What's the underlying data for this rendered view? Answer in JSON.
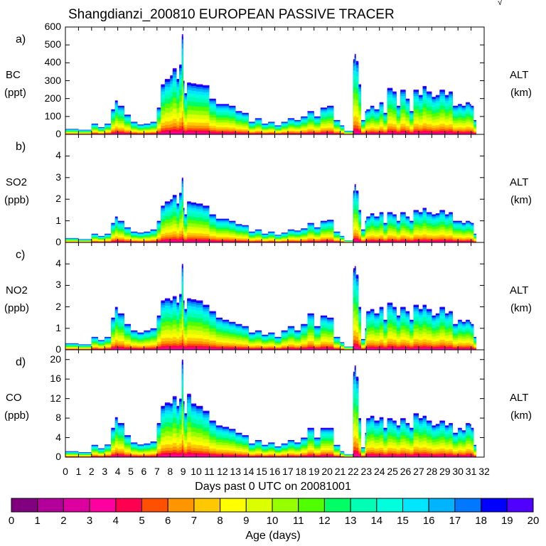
{
  "title": "Shangdianzi_200810 EUROPEAN PASSIVE TRACER",
  "corner_mark": "√",
  "x_axis": {
    "label": "Days past 0 UTC on 20081001",
    "ticks": [
      "0",
      "1",
      "2",
      "3",
      "4",
      "5",
      "6",
      "7",
      "8",
      "9",
      "10",
      "11",
      "12",
      "13",
      "14",
      "15",
      "16",
      "17",
      "18",
      "19",
      "20",
      "21",
      "22",
      "23",
      "24",
      "25",
      "26",
      "27",
      "28",
      "29",
      "30",
      "31",
      "32"
    ]
  },
  "colorbar": {
    "label": "Age (days)",
    "ticks": [
      "0",
      "1",
      "2",
      "3",
      "4",
      "5",
      "6",
      "7",
      "8",
      "9",
      "10",
      "11",
      "12",
      "13",
      "14",
      "15",
      "16",
      "17",
      "18",
      "19",
      "20"
    ],
    "colors": [
      "#800080",
      "#b4009b",
      "#dc00a0",
      "#ff00a0",
      "#ff0050",
      "#ff5000",
      "#ff9600",
      "#ffc800",
      "#ffff00",
      "#dcff00",
      "#96ff00",
      "#50ff00",
      "#00ff64",
      "#00ffb4",
      "#00ffdc",
      "#00e6ff",
      "#00b4ff",
      "#0078ff",
      "#0000ff",
      "#5000ff"
    ]
  },
  "chart_data": [
    {
      "id": "a",
      "panel_label": "a)",
      "variable": "BC",
      "unit": "(ppt)",
      "right_label": "ALT",
      "right_unit": "(km)",
      "type": "area",
      "ylim": [
        0,
        600
      ],
      "yticks": [
        "0",
        "100",
        "200",
        "300",
        "400",
        "500",
        "600"
      ],
      "xlim": [
        0,
        32
      ],
      "total_series": {
        "x": [
          0,
          1,
          2,
          2.5,
          3,
          3.5,
          3.8,
          4,
          4.5,
          5,
          5.5,
          6,
          6.5,
          7,
          7.3,
          7.6,
          8,
          8.2,
          8.5,
          8.7,
          8.9,
          9.0,
          9.1,
          9.3,
          9.6,
          10,
          10.5,
          11,
          11.5,
          12,
          12.5,
          13,
          13.5,
          14,
          14.5,
          15,
          15.5,
          16,
          16.5,
          17,
          17.5,
          18,
          18.5,
          19,
          19.5,
          20,
          20.5,
          21,
          21.3,
          21.6,
          21.7,
          21.8,
          22,
          22.1,
          22.2,
          22.4,
          22.6,
          22.9,
          23,
          23.3,
          23.6,
          24,
          24.3,
          24.6,
          25,
          25.3,
          25.6,
          26,
          26.3,
          26.6,
          27,
          27.3,
          27.6,
          28,
          28.3,
          28.6,
          29,
          29.3,
          29.6,
          30,
          30.3,
          30.6,
          30.9,
          31,
          31.2
        ],
        "values": [
          30,
          25,
          60,
          40,
          60,
          140,
          190,
          160,
          110,
          70,
          55,
          60,
          70,
          150,
          280,
          310,
          330,
          370,
          310,
          390,
          560,
          300,
          230,
          290,
          285,
          280,
          275,
          200,
          170,
          170,
          160,
          130,
          120,
          70,
          90,
          60,
          70,
          50,
          70,
          90,
          80,
          100,
          130,
          100,
          150,
          160,
          80,
          50,
          20,
          20,
          20,
          20,
          420,
          450,
          410,
          280,
          80,
          130,
          140,
          160,
          140,
          180,
          120,
          260,
          240,
          160,
          250,
          200,
          130,
          250,
          220,
          270,
          240,
          210,
          220,
          250,
          220,
          240,
          160,
          170,
          160,
          180,
          170,
          160,
          80
        ],
        "total_label_note": "upper envelope of stacked age-class contributions (ppt)"
      }
    },
    {
      "id": "b",
      "panel_label": "b)",
      "variable": "SO2",
      "unit": "(ppb)",
      "right_label": "ALT",
      "right_unit": "(km)",
      "type": "area",
      "ylim": [
        0,
        5
      ],
      "yticks": [
        "0",
        "1",
        "2",
        "3",
        "4"
      ],
      "xlim": [
        0,
        32
      ],
      "total_series": {
        "x": [
          0,
          1,
          2,
          2.5,
          3,
          3.5,
          3.8,
          4,
          4.5,
          5,
          5.5,
          6,
          6.5,
          7,
          7.3,
          7.6,
          8,
          8.2,
          8.5,
          8.7,
          8.9,
          9.0,
          9.1,
          9.3,
          9.6,
          10,
          10.5,
          11,
          11.5,
          12,
          12.5,
          13,
          13.5,
          14,
          14.5,
          15,
          15.5,
          16,
          16.5,
          17,
          17.5,
          18,
          18.5,
          19,
          19.5,
          20,
          20.5,
          21,
          21.3,
          21.6,
          21.7,
          21.8,
          22,
          22.1,
          22.2,
          22.4,
          22.6,
          22.9,
          23,
          23.3,
          23.6,
          24,
          24.3,
          24.6,
          25,
          25.3,
          25.6,
          26,
          26.3,
          26.6,
          27,
          27.3,
          27.6,
          28,
          28.3,
          28.6,
          29,
          29.3,
          29.6,
          30,
          30.3,
          30.6,
          30.9,
          31,
          31.2
        ],
        "values": [
          0.2,
          0.15,
          0.4,
          0.3,
          0.4,
          0.9,
          1.2,
          1.0,
          0.7,
          0.5,
          0.45,
          0.5,
          0.6,
          1.0,
          1.7,
          1.9,
          2.0,
          2.2,
          1.8,
          2.3,
          3.0,
          1.6,
          1.3,
          1.9,
          1.85,
          1.8,
          1.7,
          1.3,
          1.1,
          1.1,
          1.0,
          0.85,
          0.8,
          0.5,
          0.6,
          0.4,
          0.5,
          0.35,
          0.45,
          0.6,
          0.55,
          0.65,
          0.9,
          0.7,
          1.0,
          1.05,
          0.5,
          0.3,
          0.1,
          0.1,
          0.1,
          0.1,
          2.4,
          2.7,
          2.4,
          1.5,
          0.6,
          1.0,
          1.2,
          1.35,
          1.2,
          1.4,
          0.9,
          1.4,
          1.3,
          1.0,
          1.4,
          1.2,
          1.0,
          1.5,
          1.4,
          1.6,
          1.4,
          1.3,
          1.35,
          1.5,
          1.3,
          1.4,
          1.0,
          1.0,
          0.9,
          1.0,
          0.95,
          0.9,
          0.4
        ]
      }
    },
    {
      "id": "c",
      "panel_label": "c)",
      "variable": "NO2",
      "unit": "(ppb)",
      "right_label": "ALT",
      "right_unit": "(km)",
      "type": "area",
      "ylim": [
        0,
        5
      ],
      "yticks": [
        "0",
        "1",
        "2",
        "3",
        "4"
      ],
      "xlim": [
        0,
        32
      ],
      "total_series": {
        "x": [
          0,
          1,
          2,
          2.5,
          3,
          3.5,
          3.8,
          4,
          4.5,
          5,
          5.5,
          6,
          6.5,
          7,
          7.3,
          7.6,
          8,
          8.2,
          8.5,
          8.7,
          8.9,
          9.0,
          9.1,
          9.3,
          9.6,
          10,
          10.5,
          11,
          11.5,
          12,
          12.5,
          13,
          13.5,
          14,
          14.5,
          15,
          15.5,
          16,
          16.5,
          17,
          17.5,
          18,
          18.5,
          19,
          19.5,
          20,
          20.5,
          21,
          21.3,
          21.6,
          21.7,
          21.8,
          22,
          22.1,
          22.2,
          22.4,
          22.6,
          22.9,
          23,
          23.3,
          23.6,
          24,
          24.3,
          24.6,
          25,
          25.3,
          25.6,
          26,
          26.3,
          26.6,
          27,
          27.3,
          27.6,
          28,
          28.3,
          28.6,
          29,
          29.3,
          29.6,
          30,
          30.3,
          30.6,
          30.9,
          31,
          31.2
        ],
        "values": [
          0.3,
          0.25,
          0.6,
          0.45,
          0.6,
          1.5,
          2.0,
          1.7,
          1.2,
          0.9,
          0.8,
          0.9,
          1.0,
          1.6,
          2.3,
          2.4,
          2.3,
          2.5,
          2.2,
          2.6,
          4.0,
          2.3,
          1.9,
          2.4,
          2.35,
          2.3,
          2.1,
          1.8,
          1.5,
          1.4,
          1.3,
          1.2,
          1.1,
          0.8,
          0.9,
          0.7,
          0.8,
          0.6,
          0.9,
          1.1,
          0.9,
          1.2,
          1.7,
          1.1,
          1.6,
          1.5,
          0.6,
          0.35,
          0.15,
          0.15,
          0.15,
          0.15,
          3.8,
          3.9,
          3.5,
          2.0,
          0.5,
          1.0,
          1.8,
          1.9,
          1.7,
          2.0,
          1.4,
          2.2,
          2.0,
          1.6,
          2.0,
          1.8,
          1.4,
          2.1,
          1.9,
          2.1,
          1.9,
          1.6,
          1.7,
          2.0,
          1.7,
          1.8,
          1.2,
          1.4,
          1.3,
          1.4,
          1.3,
          1.2,
          0.6
        ]
      }
    },
    {
      "id": "d",
      "panel_label": "d)",
      "variable": "CO",
      "unit": "(ppb)",
      "right_label": "ALT",
      "right_unit": "(km)",
      "type": "area",
      "ylim": [
        0,
        22
      ],
      "yticks": [
        "0",
        "4",
        "8",
        "12",
        "16",
        "20"
      ],
      "ytick_values": [
        0,
        4,
        8,
        12,
        16,
        20
      ],
      "xlim": [
        0,
        32
      ],
      "total_series": {
        "x": [
          0,
          1,
          2,
          2.5,
          3,
          3.5,
          3.8,
          4,
          4.5,
          5,
          5.5,
          6,
          6.5,
          7,
          7.3,
          7.6,
          8,
          8.2,
          8.5,
          8.7,
          8.9,
          9.0,
          9.1,
          9.3,
          9.6,
          10,
          10.5,
          11,
          11.5,
          12,
          12.5,
          13,
          13.5,
          14,
          14.5,
          15,
          15.5,
          16,
          16.5,
          17,
          17.5,
          18,
          18.5,
          19,
          19.5,
          20,
          20.5,
          21,
          21.3,
          21.6,
          21.7,
          21.8,
          22,
          22.1,
          22.2,
          22.4,
          22.6,
          22.9,
          23,
          23.3,
          23.6,
          24,
          24.3,
          24.6,
          25,
          25.3,
          25.6,
          26,
          26.3,
          26.6,
          27,
          27.3,
          27.6,
          28,
          28.3,
          28.6,
          29,
          29.3,
          29.6,
          30,
          30.3,
          30.6,
          30.9,
          31,
          31.2
        ],
        "values": [
          1.2,
          1.0,
          2.5,
          1.8,
          2.6,
          6.0,
          8.2,
          7.0,
          4.5,
          3.0,
          2.6,
          2.8,
          3.2,
          7.0,
          10.5,
          11.2,
          11.0,
          12.5,
          10.5,
          12.0,
          20.0,
          11.5,
          9.0,
          13.0,
          11.0,
          10.5,
          9.5,
          7.5,
          6.5,
          6.2,
          5.8,
          5.0,
          4.5,
          2.8,
          3.5,
          2.5,
          3.0,
          2.2,
          2.8,
          3.5,
          3.0,
          4.0,
          6.0,
          4.0,
          6.0,
          6.0,
          2.5,
          1.2,
          0.6,
          0.6,
          0.6,
          0.6,
          17.5,
          18.8,
          16.5,
          8.0,
          2.0,
          5.0,
          8.0,
          8.5,
          7.5,
          8.2,
          6.0,
          8.0,
          7.5,
          6.5,
          8.0,
          7.0,
          6.0,
          9.0,
          8.0,
          8.5,
          7.5,
          6.5,
          6.8,
          7.5,
          6.5,
          7.0,
          5.0,
          6.0,
          5.5,
          7.0,
          6.8,
          6.0,
          2.5
        ]
      }
    }
  ]
}
